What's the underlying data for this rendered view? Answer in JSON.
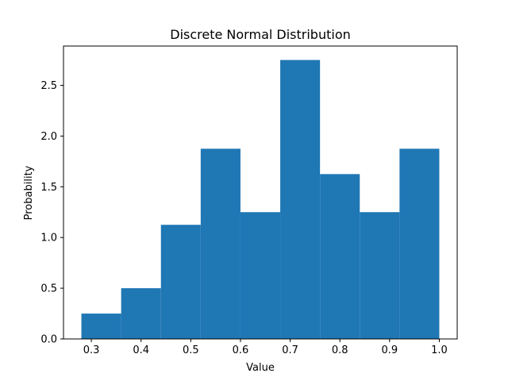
{
  "chart_data": {
    "type": "bar",
    "title": "Discrete Normal Distribution",
    "xlabel": "Value",
    "ylabel": "Probability",
    "bins": [
      {
        "x0": 0.28,
        "x1": 0.36,
        "value": 0.25
      },
      {
        "x0": 0.36,
        "x1": 0.44,
        "value": 0.5
      },
      {
        "x0": 0.44,
        "x1": 0.52,
        "value": 1.125
      },
      {
        "x0": 0.52,
        "x1": 0.6,
        "value": 1.875
      },
      {
        "x0": 0.6,
        "x1": 0.68,
        "value": 1.25
      },
      {
        "x0": 0.68,
        "x1": 0.76,
        "value": 2.75
      },
      {
        "x0": 0.76,
        "x1": 0.84,
        "value": 1.625
      },
      {
        "x0": 0.84,
        "x1": 0.92,
        "value": 1.25
      },
      {
        "x0": 0.92,
        "x1": 1.0,
        "value": 1.875
      }
    ],
    "xlim": [
      0.244,
      1.036
    ],
    "ylim": [
      0,
      2.8875
    ],
    "xticks": [
      {
        "value": 0.3,
        "label": "0.3"
      },
      {
        "value": 0.4,
        "label": "0.4"
      },
      {
        "value": 0.5,
        "label": "0.5"
      },
      {
        "value": 0.6,
        "label": "0.6"
      },
      {
        "value": 0.7,
        "label": "0.7"
      },
      {
        "value": 0.8,
        "label": "0.8"
      },
      {
        "value": 0.9,
        "label": "0.9"
      },
      {
        "value": 1.0,
        "label": "1.0"
      }
    ],
    "yticks": [
      {
        "value": 0.0,
        "label": "0.0"
      },
      {
        "value": 0.5,
        "label": "0.5"
      },
      {
        "value": 1.0,
        "label": "1.0"
      },
      {
        "value": 1.5,
        "label": "1.5"
      },
      {
        "value": 2.0,
        "label": "2.0"
      },
      {
        "value": 2.5,
        "label": "2.5"
      }
    ],
    "grid": false,
    "bar_color": "#1f77b4"
  }
}
